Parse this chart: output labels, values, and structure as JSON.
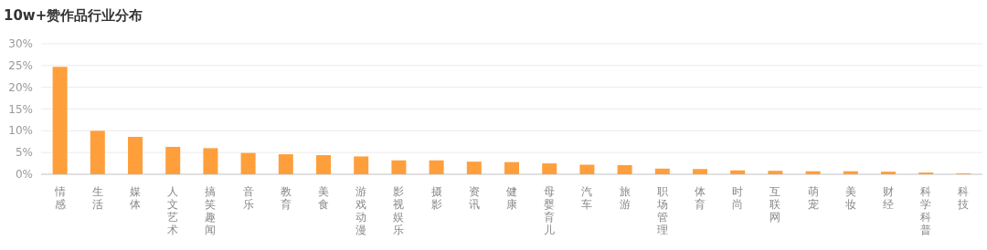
{
  "chart_data": {
    "type": "bar",
    "title": "10w+赞作品行业分布",
    "categories": [
      "情感",
      "生活",
      "媒体",
      "人文艺术",
      "搞笑趣闻",
      "音乐",
      "教育",
      "美食",
      "游戏动漫",
      "影视娱乐",
      "摄影",
      "资讯",
      "健康",
      "母婴育儿",
      "汽车",
      "旅游",
      "职场管理",
      "体育",
      "时尚",
      "互联网",
      "萌宠",
      "美妆",
      "财经",
      "科学科普",
      "科技"
    ],
    "values": [
      24.7,
      10.0,
      8.6,
      6.3,
      6.0,
      4.9,
      4.6,
      4.4,
      4.1,
      3.2,
      3.2,
      2.9,
      2.8,
      2.5,
      2.2,
      2.1,
      1.3,
      1.2,
      0.9,
      0.8,
      0.7,
      0.7,
      0.6,
      0.4,
      0.2
    ],
    "color": "#ff9f3b",
    "ylim": [
      0,
      30
    ],
    "yticks": [
      {
        "value": 0,
        "label": "0%"
      },
      {
        "value": 5,
        "label": "5%"
      },
      {
        "value": 10,
        "label": "10%"
      },
      {
        "value": 15,
        "label": "15%"
      },
      {
        "value": 20,
        "label": "20%"
      },
      {
        "value": 25,
        "label": "25%"
      },
      {
        "value": 30,
        "label": "30%"
      }
    ],
    "grid": "y"
  }
}
